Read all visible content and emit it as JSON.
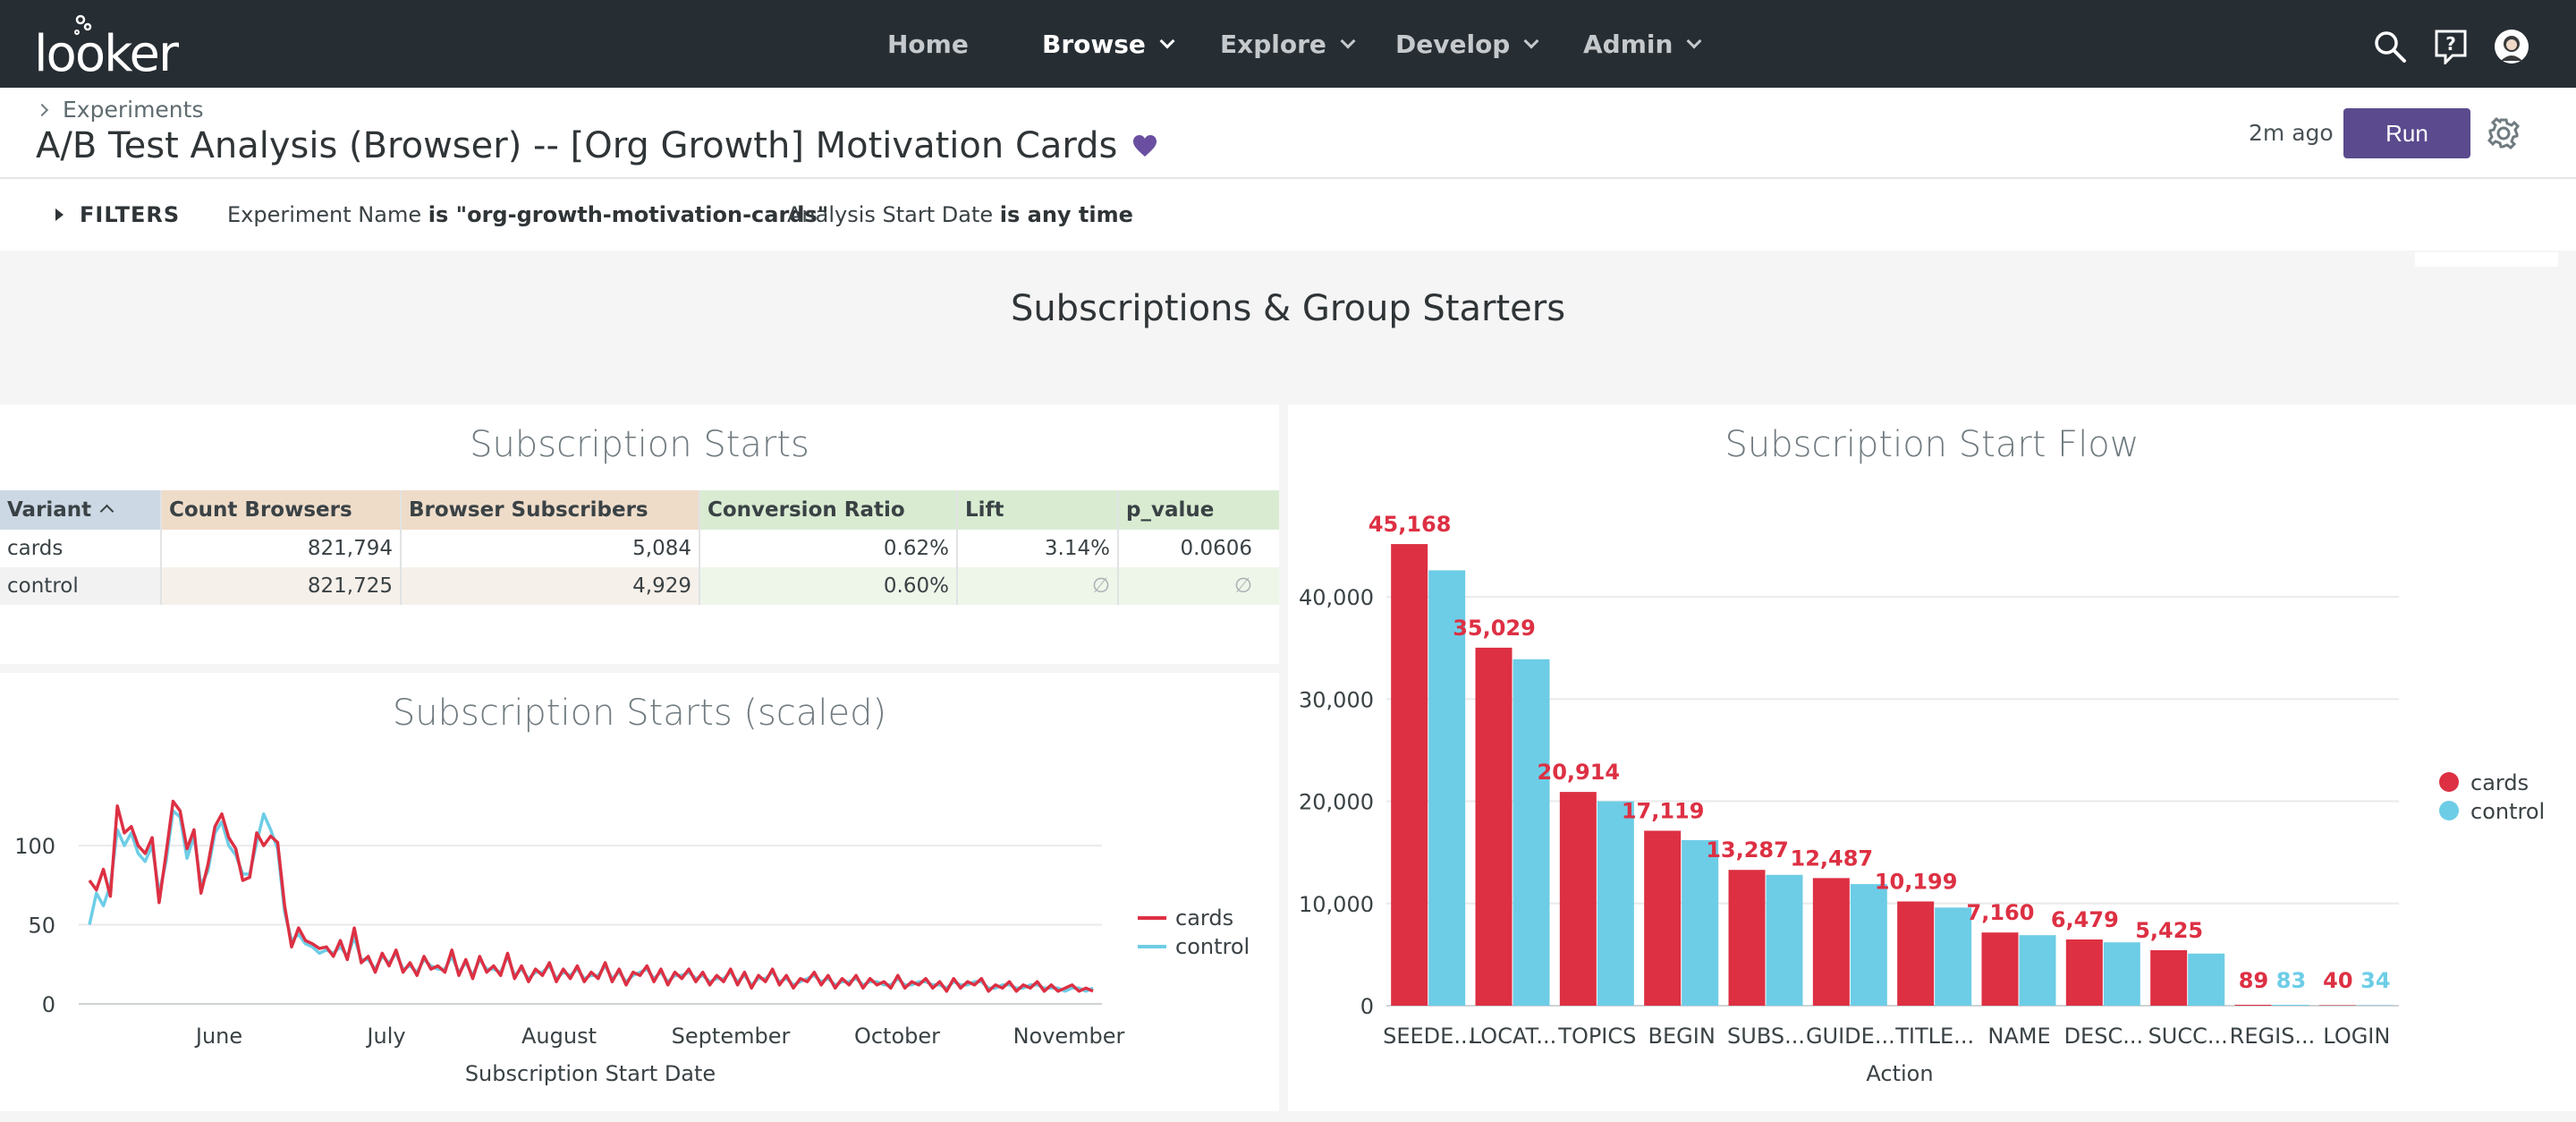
{
  "app": {
    "logo_text": "looker"
  },
  "nav": {
    "home": "Home",
    "browse": "Browse",
    "explore": "Explore",
    "develop": "Develop",
    "admin": "Admin"
  },
  "icons": {
    "search": "search-icon",
    "help": "help-icon",
    "avatar": "avatar"
  },
  "header": {
    "breadcrumb": "Experiments",
    "title": "A/B Test Analysis (Browser) -- [Org Growth] Motivation Cards",
    "last_run": "2m ago",
    "run_label": "Run"
  },
  "filters": {
    "toggle_label": "FILTERS",
    "items": [
      {
        "field": "Experiment Name ",
        "condition": "is \"org-growth-motivation-cards\""
      },
      {
        "field": "Analysis Start Date ",
        "condition": "is any time"
      }
    ]
  },
  "section": {
    "title": "Subscriptions & Group Starters"
  },
  "colors": {
    "cards": "#dd3043",
    "control": "#6dcde6",
    "accent": "#5b4a8e"
  },
  "subscription_starts": {
    "title": "Subscription Starts",
    "columns": [
      "Variant",
      "Count Browsers",
      "Browser Subscribers",
      "Conversion Ratio",
      "Lift",
      "p_value"
    ],
    "rows": [
      [
        "cards",
        "821,794",
        "5,084",
        "0.62%",
        "3.14%",
        "0.0606"
      ],
      [
        "control",
        "821,725",
        "4,929",
        "0.60%",
        "∅",
        "∅"
      ]
    ]
  },
  "scaled_chart": {
    "title": "Subscription Starts (scaled)",
    "chart_data": {
      "type": "line",
      "title": "Subscription Starts (scaled)",
      "xlabel": "Subscription Start Date",
      "ylabel": "",
      "ylim": [
        0,
        130
      ],
      "y_ticks": [
        "0",
        "50",
        "100"
      ],
      "x_ticks": [
        "June",
        "July",
        "August",
        "September",
        "October",
        "November"
      ],
      "legend": "right",
      "series": [
        {
          "name": "cards",
          "color": "#dd3043",
          "values": [
            78,
            72,
            85,
            68,
            125,
            108,
            112,
            100,
            95,
            105,
            64,
            95,
            128,
            122,
            98,
            110,
            70,
            88,
            112,
            120,
            105,
            98,
            78,
            80,
            108,
            100,
            106,
            102,
            62,
            36,
            48,
            40,
            38,
            35,
            36,
            30,
            40,
            28,
            48,
            26,
            30,
            20,
            32,
            24,
            34,
            20,
            26,
            18,
            30,
            22,
            24,
            20,
            34,
            18,
            28,
            16,
            30,
            20,
            24,
            18,
            32,
            16,
            24,
            14,
            22,
            18,
            26,
            14,
            22,
            16,
            24,
            14,
            20,
            16,
            26,
            14,
            22,
            12,
            20,
            18,
            24,
            14,
            22,
            12,
            20,
            16,
            22,
            14,
            20,
            12,
            18,
            14,
            22,
            12,
            20,
            10,
            18,
            14,
            22,
            12,
            18,
            10,
            16,
            14,
            20,
            12,
            18,
            10,
            16,
            12,
            18,
            10,
            16,
            12,
            14,
            10,
            18,
            10,
            14,
            12,
            16,
            10,
            14,
            8,
            16,
            10,
            14,
            12,
            16,
            8,
            12,
            10,
            14,
            8,
            12,
            10,
            14,
            8,
            12,
            8,
            10,
            12,
            8,
            10,
            8
          ]
        },
        {
          "name": "control",
          "color": "#6dcde6",
          "values": [
            50,
            70,
            62,
            75,
            110,
            100,
            108,
            95,
            90,
            100,
            70,
            90,
            122,
            118,
            92,
            106,
            75,
            84,
            108,
            115,
            100,
            94,
            82,
            82,
            102,
            120,
            110,
            98,
            58,
            40,
            44,
            38,
            36,
            32,
            34,
            32,
            36,
            30,
            42,
            28,
            28,
            22,
            30,
            26,
            32,
            22,
            24,
            20,
            28,
            24,
            22,
            22,
            30,
            20,
            26,
            18,
            28,
            22,
            22,
            20,
            30,
            18,
            22,
            16,
            20,
            20,
            24,
            16,
            20,
            18,
            22,
            16,
            18,
            18,
            24,
            16,
            20,
            14,
            18,
            20,
            22,
            16,
            20,
            14,
            18,
            18,
            20,
            16,
            18,
            14,
            16,
            16,
            20,
            14,
            18,
            12,
            16,
            16,
            20,
            14,
            16,
            12,
            14,
            16,
            18,
            14,
            16,
            12,
            14,
            14,
            16,
            12,
            14,
            14,
            12,
            12,
            16,
            12,
            12,
            14,
            14,
            12,
            12,
            10,
            14,
            12,
            12,
            14,
            14,
            10,
            10,
            12,
            12,
            10,
            10,
            12,
            12,
            10,
            10,
            10,
            8,
            10,
            10,
            8,
            10
          ]
        }
      ]
    }
  },
  "flow_chart": {
    "title": "Subscription Start Flow",
    "chart_data": {
      "type": "bar",
      "title": "Subscription Start Flow",
      "xlabel": "Action",
      "ylabel": "",
      "ylim": [
        0,
        45000
      ],
      "y_ticks": [
        "0",
        "10,000",
        "20,000",
        "30,000",
        "40,000"
      ],
      "legend": "right",
      "categories": [
        "SEEDE...",
        "LOCAT...",
        "TOPICS",
        "BEGIN",
        "SUBS...",
        "GUIDE...",
        "TITLE...",
        "NAME",
        "DESC...",
        "SUCC...",
        "REGIS...",
        "LOGIN"
      ],
      "series": [
        {
          "name": "cards",
          "color": "#dd3043",
          "values": [
            45168,
            35029,
            20914,
            17119,
            13287,
            12487,
            10199,
            7160,
            6479,
            5425,
            89,
            40
          ],
          "labels": [
            "45,168",
            "35,029",
            "20,914",
            "17,119",
            "13,287",
            "12,487",
            "10,199",
            "7,160",
            "6,479",
            "5,425",
            "89",
            "40"
          ]
        },
        {
          "name": "control",
          "color": "#6dcde6",
          "values": [
            42600,
            33900,
            20000,
            16200,
            12800,
            11900,
            9600,
            6900,
            6200,
            5100,
            83,
            34
          ],
          "labels": [
            "",
            "",
            "",
            "",
            "",
            "",
            "",
            "",
            "",
            "",
            "83",
            "34"
          ]
        }
      ]
    }
  }
}
